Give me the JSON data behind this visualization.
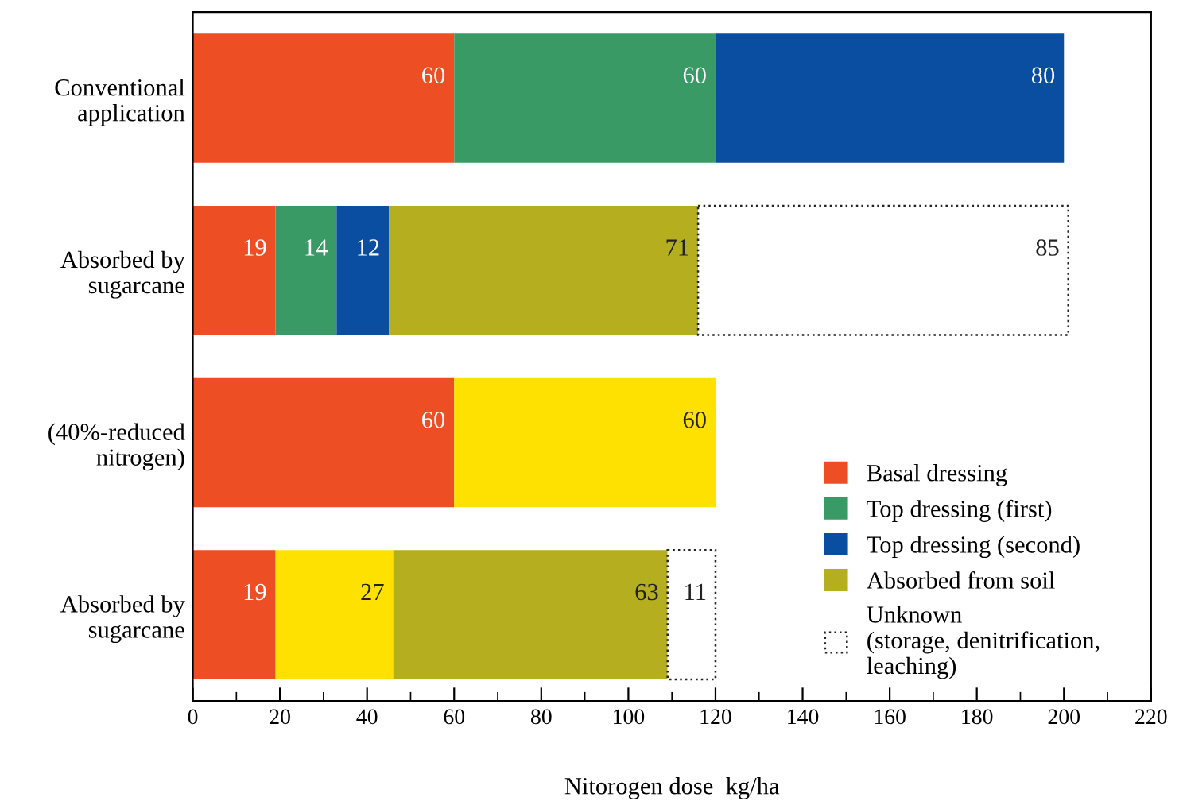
{
  "chart_data": {
    "type": "bar",
    "orientation": "horizontal",
    "stacked": true,
    "data_labels": true,
    "categories": [
      "Conventional\napplication",
      "Absorbed by\nsugarcane",
      "(40%-reduced\nnitrogen)",
      "Absorbed by\nsugarcane"
    ],
    "series": [
      {
        "name": "Basal dressing",
        "color": "#ee4e23",
        "values": [
          60,
          19,
          60,
          19
        ]
      },
      {
        "name": "Top dressing (first)",
        "color": "#3a9a66",
        "values": [
          60,
          14,
          null,
          null
        ]
      },
      {
        "name": "Top dressing (second)",
        "color": "#0a4ea2",
        "values": [
          80,
          12,
          null,
          null
        ]
      },
      {
        "color": "#ffe100",
        "values": [
          null,
          null,
          60,
          27
        ]
      },
      {
        "name": "Absorbed from soil",
        "color": "#b5af1f",
        "values": [
          null,
          71,
          null,
          63
        ]
      },
      {
        "name": "Unknown\n(storage, denitrification,\nleaching)",
        "color": "#ffffff",
        "line_style": "dotted",
        "values": [
          null,
          85,
          null,
          11
        ]
      }
    ],
    "xlabel": "Nitorogen dose  kg/ha",
    "xlim": [
      0,
      220
    ],
    "xticks": [
      0,
      20,
      40,
      60,
      80,
      100,
      120,
      140,
      160,
      180,
      200,
      220
    ],
    "tick_labels": "x",
    "legend": "bottom right",
    "grid": false
  }
}
